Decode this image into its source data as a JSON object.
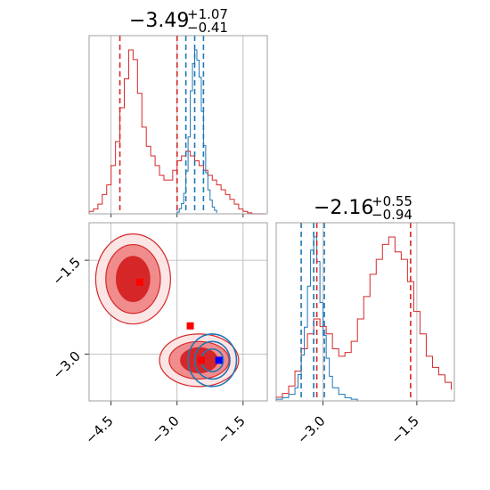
{
  "chart_data": {
    "type": "corner",
    "colors": {
      "red": "#d62728",
      "blue": "#1f77b4",
      "grid": "#b0b0b0"
    },
    "params": [
      {
        "title": {
          "main": "−3.49",
          "sup": "+1.07",
          "sub": "−0.41"
        },
        "range": [
          -5.0,
          -0.95
        ],
        "ticks": [
          -4.5,
          -3.0,
          -1.5
        ],
        "tick_labels": [
          "−4.5",
          "−3.0",
          "−1.5"
        ],
        "red_quantiles": [
          -4.3,
          -3.0
        ],
        "blue_quantiles": [
          -2.8,
          -2.6,
          -2.4
        ],
        "red_hist": {
          "x": [
            -5.0,
            -4.9,
            -4.8,
            -4.7,
            -4.6,
            -4.5,
            -4.4,
            -4.3,
            -4.2,
            -4.1,
            -4.0,
            -3.9,
            -3.8,
            -3.7,
            -3.6,
            -3.5,
            -3.4,
            -3.3,
            -3.2,
            -3.1,
            -3.0,
            -2.9,
            -2.8,
            -2.7,
            -2.6,
            -2.5,
            -2.4,
            -2.3,
            -2.2,
            -2.1,
            -2.0,
            -1.9,
            -1.8,
            -1.7,
            -1.6,
            -1.5,
            -1.4,
            -1.3,
            -1.2,
            -1.1,
            -1.0
          ],
          "y": [
            0.5,
            1,
            2,
            4,
            6,
            10,
            15,
            22,
            28,
            34,
            32,
            25,
            18,
            14,
            12,
            10,
            8,
            7,
            7,
            9,
            11,
            12,
            13,
            12,
            11,
            10,
            9,
            8,
            7,
            6,
            5,
            4,
            3,
            2,
            1,
            0.5,
            0.2,
            0,
            0,
            0,
            0
          ]
        },
        "blue_hist": {
          "x": [
            -3.0,
            -2.95,
            -2.9,
            -2.85,
            -2.8,
            -2.75,
            -2.7,
            -2.65,
            -2.6,
            -2.55,
            -2.5,
            -2.45,
            -2.4,
            -2.35,
            -2.3,
            -2.25,
            -2.2,
            -2.15,
            -2.1
          ],
          "y": [
            1,
            3,
            6,
            12,
            25,
            45,
            72,
            88,
            96,
            90,
            80,
            60,
            40,
            24,
            14,
            8,
            4,
            2,
            0.5
          ]
        }
      },
      {
        "title": {
          "main": "−2.16",
          "sup": "+0.55",
          "sub": "−0.94"
        },
        "range": [
          -3.75,
          -0.9
        ],
        "ticks": [
          -3.0,
          -1.5
        ],
        "tick_labels": [
          "−3.0",
          "−1.5"
        ],
        "red_quantiles": [
          -3.1,
          -1.6
        ],
        "blue_quantiles": [
          -3.35,
          -3.15,
          -2.98
        ],
        "red_hist": {
          "x": [
            -3.75,
            -3.65,
            -3.55,
            -3.45,
            -3.35,
            -3.25,
            -3.15,
            -3.05,
            -2.95,
            -2.85,
            -2.75,
            -2.65,
            -2.55,
            -2.45,
            -2.35,
            -2.25,
            -2.15,
            -2.05,
            -1.95,
            -1.85,
            -1.75,
            -1.65,
            -1.55,
            -1.45,
            -1.35,
            -1.25,
            -1.15,
            -1.05,
            -0.95
          ],
          "y": [
            1,
            2,
            4,
            8,
            14,
            18,
            22,
            20,
            18,
            14,
            12,
            13,
            16,
            22,
            28,
            34,
            38,
            42,
            44,
            40,
            38,
            32,
            24,
            18,
            12,
            9,
            7,
            5,
            3
          ]
        },
        "blue_hist": {
          "x": [
            -3.75,
            -3.65,
            -3.55,
            -3.45,
            -3.4,
            -3.35,
            -3.3,
            -3.25,
            -3.2,
            -3.15,
            -3.1,
            -3.05,
            -3.0,
            -2.95,
            -2.9,
            -2.85,
            -2.75,
            -2.65,
            -2.55,
            -2.45
          ],
          "y": [
            1,
            2,
            4,
            8,
            16,
            28,
            45,
            70,
            92,
            100,
            85,
            60,
            40,
            26,
            15,
            8,
            4,
            2,
            1,
            0
          ]
        }
      }
    ],
    "scatter_2d": {
      "red_blobs": [
        {
          "cx": -4.0,
          "cy": -1.8,
          "rx": [
            0.85,
            0.62,
            0.38
          ],
          "ry": [
            0.72,
            0.55,
            0.36
          ]
        },
        {
          "cx": -2.5,
          "cy": -3.1,
          "rx": [
            0.9,
            0.68,
            0.42
          ],
          "ry": [
            0.42,
            0.3,
            0.2
          ]
        }
      ],
      "blue_blob": {
        "cx": -2.2,
        "cy": -3.1,
        "rx": [
          0.55,
          0.4,
          0.25
        ],
        "ry": [
          0.42,
          0.3,
          0.18
        ]
      },
      "markers": [
        {
          "x": -3.85,
          "y": -1.85,
          "color": "#ff0000"
        },
        {
          "x": -2.7,
          "y": -2.55,
          "color": "#ff0000"
        },
        {
          "x": -2.45,
          "y": -3.1,
          "color": "#ff0000"
        },
        {
          "x": -2.05,
          "y": -3.1,
          "color": "#0000ff"
        }
      ],
      "x_ticks": [
        -4.5,
        -3.0,
        -1.5
      ],
      "y_ticks": [
        -1.5,
        -3.0
      ],
      "y_tick_labels": [
        "−1.5",
        "−3.0"
      ]
    },
    "grid": true
  }
}
